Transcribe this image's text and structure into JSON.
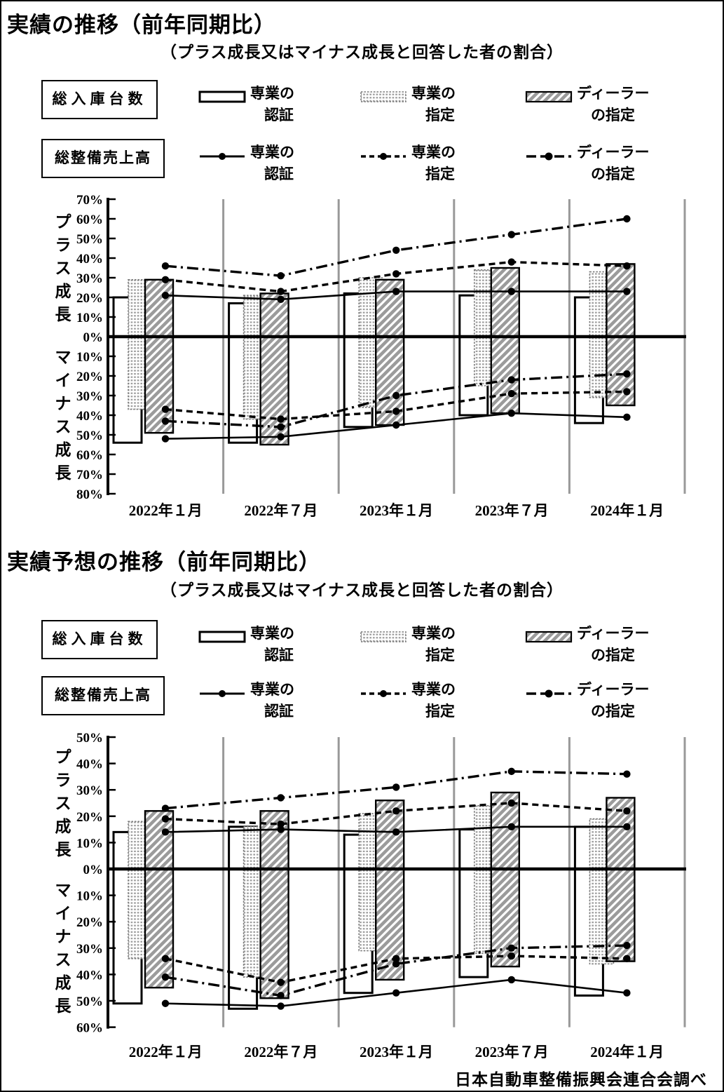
{
  "page": {
    "footer": "日本自動車整備振興会連合会調べ"
  },
  "colors": {
    "ink": "#000000",
    "gridline": "#999999",
    "pattern_gray": "#9b9b9b"
  },
  "legend": {
    "bars_group_label": "総入庫台数",
    "lines_group_label": "総整備売上高",
    "bar_items": [
      {
        "swatch": "white-bar",
        "line1": "専業の",
        "line2": "認証"
      },
      {
        "swatch": "dotted-bar",
        "line1": "専業の",
        "line2": "指定"
      },
      {
        "swatch": "hatched-bar",
        "line1": "ディーラー",
        "line2": "の指定"
      }
    ],
    "line_items": [
      {
        "swatch": "solid-line",
        "line1": "専業の",
        "line2": "認証"
      },
      {
        "swatch": "dashed-line",
        "line1": "専業の",
        "line2": "指定"
      },
      {
        "swatch": "dashdot-line",
        "line1": "ディーラー",
        "line2": "の指定"
      }
    ]
  },
  "chart_data": [
    {
      "type": "bar+line",
      "title": "実績の推移（前年同期比）",
      "subtitle": "（プラス成長又はマイナス成長と回答した者の割合）",
      "plus_axis_label": "プラス成長",
      "minus_axis_label": "マイナス成長",
      "categories": [
        "2022年１月",
        "2022年７月",
        "2023年１月",
        "2023年７月",
        "2024年１月"
      ],
      "ylim": [
        -80,
        70
      ],
      "yticks": [
        "70%",
        "60%",
        "50%",
        "40%",
        "30%",
        "20%",
        "10%",
        "0%",
        "10%",
        "20%",
        "30%",
        "40%",
        "50%",
        "60%",
        "70%",
        "80%"
      ],
      "grid": "vertical-gray",
      "bar_series": [
        {
          "name": "総入庫台数 専業の認証",
          "style": "white",
          "plus": [
            20,
            17,
            22,
            21,
            20
          ],
          "minus": [
            -54,
            -54,
            -46,
            -40,
            -44
          ]
        },
        {
          "name": "総入庫台数 専業の指定",
          "style": "dotted",
          "plus": [
            29,
            21,
            30,
            34,
            33
          ],
          "minus": [
            -37,
            -42,
            -36,
            -25,
            -31
          ]
        },
        {
          "name": "総入庫台数 ディーラーの指定",
          "style": "hatched",
          "plus": [
            29,
            22,
            29,
            35,
            37
          ],
          "minus": [
            -49,
            -55,
            -45,
            -39,
            -35
          ]
        }
      ],
      "line_series": [
        {
          "name": "総整備売上高 専業の認証",
          "style": "solid",
          "plus": [
            21,
            19,
            23,
            23,
            23
          ],
          "minus": [
            -52,
            -51,
            -45,
            -39,
            -41
          ]
        },
        {
          "name": "総整備売上高 専業の指定",
          "style": "dashed",
          "plus": [
            29,
            23,
            32,
            38,
            36
          ],
          "minus": [
            -37,
            -42,
            -38,
            -29,
            -28
          ]
        },
        {
          "name": "総整備売上高 ディーラーの指定",
          "style": "dashdot",
          "plus": [
            36,
            31,
            44,
            52,
            60
          ],
          "minus": [
            -43,
            -46,
            -30,
            -22,
            -19
          ]
        }
      ]
    },
    {
      "type": "bar+line",
      "title": "実績予想の推移（前年同期比）",
      "subtitle": "（プラス成長又はマイナス成長と回答した者の割合）",
      "plus_axis_label": "プラス成長",
      "minus_axis_label": "マイナス成長",
      "categories": [
        "2022年１月",
        "2022年７月",
        "2023年１月",
        "2023年７月",
        "2024年１月"
      ],
      "ylim": [
        -60,
        50
      ],
      "yticks": [
        "50%",
        "40%",
        "30%",
        "20%",
        "10%",
        "0%",
        "10%",
        "20%",
        "30%",
        "40%",
        "50%",
        "60%"
      ],
      "grid": "vertical-gray",
      "bar_series": [
        {
          "name": "総入庫台数 専業の認証",
          "style": "white",
          "plus": [
            14,
            16,
            13,
            15,
            16
          ],
          "minus": [
            -51,
            -53,
            -47,
            -41,
            -48
          ]
        },
        {
          "name": "総入庫台数 専業の指定",
          "style": "dotted",
          "plus": [
            18,
            16,
            21,
            24,
            19
          ],
          "minus": [
            -34,
            -41,
            -31,
            -32,
            -36
          ]
        },
        {
          "name": "総入庫台数 ディーラーの指定",
          "style": "hatched",
          "plus": [
            22,
            22,
            26,
            29,
            27
          ],
          "minus": [
            -45,
            -49,
            -42,
            -37,
            -35
          ]
        }
      ],
      "line_series": [
        {
          "name": "総整備売上高 専業の認証",
          "style": "solid",
          "plus": [
            14,
            15,
            14,
            16,
            16
          ],
          "minus": [
            -51,
            -52,
            -47,
            -42,
            -47
          ]
        },
        {
          "name": "総整備売上高 専業の指定",
          "style": "dashed",
          "plus": [
            19,
            17,
            22,
            25,
            22
          ],
          "minus": [
            -34,
            -43,
            -34,
            -33,
            -34
          ]
        },
        {
          "name": "総整備売上高 ディーラーの指定",
          "style": "dashdot",
          "plus": [
            23,
            27,
            31,
            37,
            36
          ],
          "minus": [
            -41,
            -48,
            -36,
            -30,
            -29
          ]
        }
      ]
    }
  ]
}
